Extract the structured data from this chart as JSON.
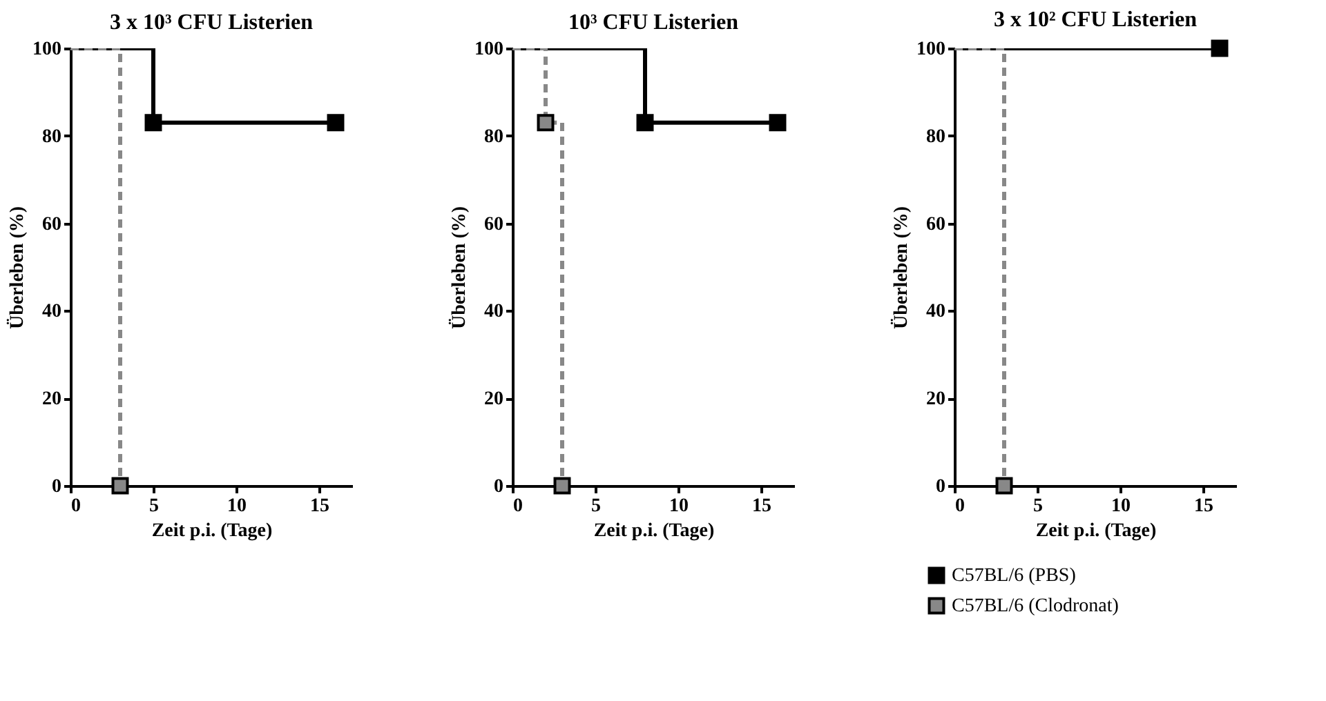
{
  "chart_data": [
    {
      "type": "step",
      "title": "3 x 10³ CFU Listerien",
      "xlabel": "Zeit p.i. (Tage)",
      "ylabel": "Überleben (%)",
      "xlim": [
        0,
        17
      ],
      "xticks": [
        0,
        5,
        10,
        15
      ],
      "ylim": [
        0,
        100
      ],
      "yticks": [
        0,
        20,
        40,
        60,
        80,
        100
      ],
      "marker": "square",
      "series": [
        {
          "color": "#000000",
          "line_style": "solid",
          "x": [
            0,
            5,
            16
          ],
          "values": [
            100,
            83,
            83
          ]
        },
        {
          "color": "#888888",
          "line_style": "dashed",
          "x": [
            0,
            3
          ],
          "values": [
            100,
            0
          ]
        }
      ]
    },
    {
      "type": "step",
      "title": "10³ CFU Listerien",
      "xlabel": "Zeit p.i. (Tage)",
      "ylabel": "Überleben (%)",
      "xlim": [
        0,
        17
      ],
      "xticks": [
        0,
        5,
        10,
        15
      ],
      "ylim": [
        0,
        100
      ],
      "yticks": [
        0,
        20,
        40,
        60,
        80,
        100
      ],
      "marker": "square",
      "series": [
        {
          "color": "#000000",
          "line_style": "solid",
          "x": [
            0,
            8,
            16
          ],
          "values": [
            100,
            83,
            83
          ]
        },
        {
          "color": "#888888",
          "line_style": "dashed",
          "x": [
            0,
            2,
            3
          ],
          "values": [
            100,
            83,
            0
          ]
        }
      ]
    },
    {
      "type": "step",
      "title": "3 x 10² CFU Listerien",
      "xlabel": "Zeit p.i. (Tage)",
      "ylabel": "Überleben (%)",
      "xlim": [
        0,
        17
      ],
      "xticks": [
        0,
        5,
        10,
        15
      ],
      "ylim": [
        0,
        100
      ],
      "yticks": [
        0,
        20,
        40,
        60,
        80,
        100
      ],
      "marker": "square",
      "legend": "bottom",
      "series": [
        {
          "name": "C57BL/6 (PBS)",
          "color": "#000000",
          "line_style": "solid",
          "x": [
            0,
            16
          ],
          "values": [
            100,
            100
          ]
        },
        {
          "name": "C57BL/6 (Clodronat)",
          "color": "#888888",
          "line_style": "dashed",
          "x": [
            0,
            3
          ],
          "values": [
            100,
            0
          ]
        }
      ]
    }
  ]
}
